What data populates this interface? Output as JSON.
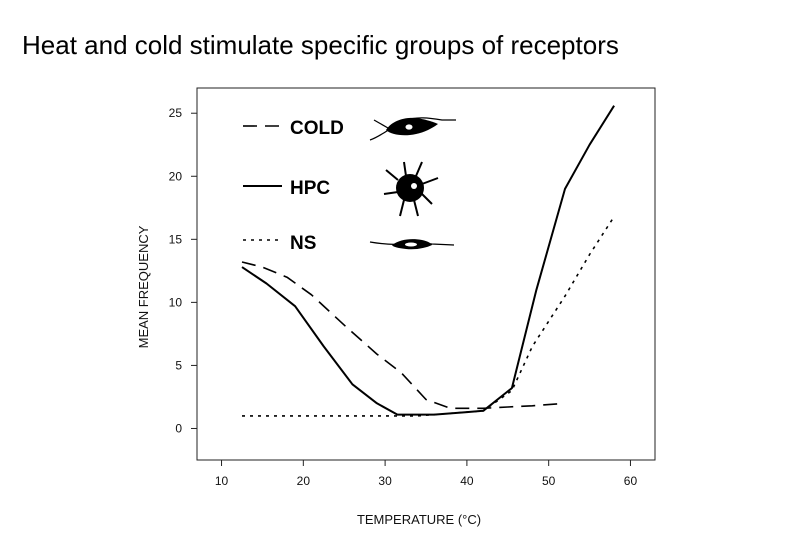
{
  "slide": {
    "title": "Heat and cold stimulate specific groups of receptors"
  },
  "chart_data": {
    "type": "line",
    "title": "",
    "xlabel": "TEMPERATURE (°C)",
    "ylabel": "MEAN FREQUENCY",
    "xlim": [
      7,
      63
    ],
    "ylim": [
      -2.5,
      27
    ],
    "x_ticks": [
      10,
      20,
      30,
      40,
      50,
      60
    ],
    "y_ticks": [
      0,
      5,
      10,
      15,
      20,
      25
    ],
    "grid": false,
    "legend_position": "top-left",
    "series": [
      {
        "name": "COLD",
        "style": "dashed",
        "x": [
          12.5,
          15,
          18,
          21,
          25,
          29,
          32,
          35,
          38,
          42,
          45,
          48,
          52
        ],
        "y": [
          13.2,
          12.8,
          12,
          10.6,
          8.2,
          5.9,
          4.4,
          2.3,
          1.6,
          1.6,
          1.7,
          1.8,
          2.0
        ]
      },
      {
        "name": "HPC",
        "style": "solid",
        "x": [
          12.5,
          15.5,
          19,
          22.5,
          26,
          29,
          31.5,
          33,
          36,
          40,
          42,
          45.5,
          48.5,
          52,
          55,
          58
        ],
        "y": [
          12.8,
          11.5,
          9.7,
          6.5,
          3.5,
          2.0,
          1.1,
          1.1,
          1.1,
          1.3,
          1.4,
          3.2,
          11,
          19,
          22.5,
          25.6
        ]
      },
      {
        "name": "NS",
        "style": "dotted",
        "x": [
          12.5,
          20,
          30,
          34,
          38,
          42,
          45.5,
          48,
          52,
          55,
          58
        ],
        "y": [
          1.0,
          1.0,
          1.0,
          1.0,
          1.2,
          1.4,
          3.0,
          6.5,
          10.5,
          13.8,
          16.8
        ]
      }
    ]
  }
}
